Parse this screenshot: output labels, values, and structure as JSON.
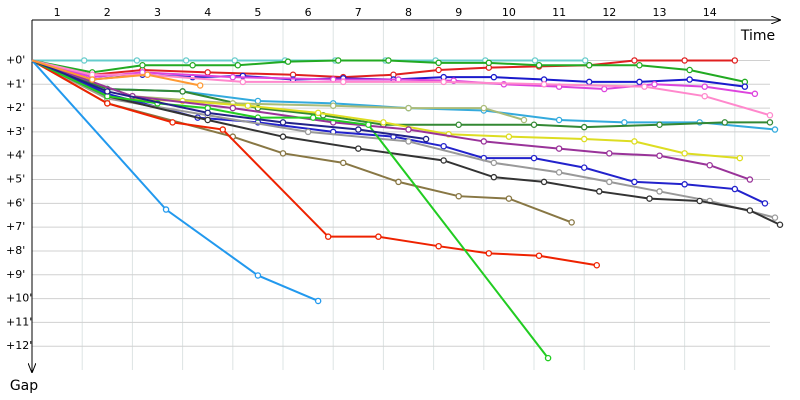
{
  "chart_data": {
    "type": "line",
    "x_label": "Time",
    "y_label": "Gap",
    "xlim": [
      0,
      14.9
    ],
    "ylim": [
      -1.7,
      13
    ],
    "grid": true,
    "xticks": [
      1,
      2,
      3,
      4,
      5,
      6,
      7,
      8,
      9,
      10,
      11,
      12,
      13,
      14
    ],
    "yticks": [
      {
        "value": 0,
        "label": "+0'"
      },
      {
        "value": 1,
        "label": "+1'"
      },
      {
        "value": 2,
        "label": "+2'"
      },
      {
        "value": 3,
        "label": "+3'"
      },
      {
        "value": 4,
        "label": "+4'"
      },
      {
        "value": 5,
        "label": "+5'"
      },
      {
        "value": 6,
        "label": "+6'"
      },
      {
        "value": 7,
        "label": "+7'"
      },
      {
        "value": 8,
        "label": "+8'"
      },
      {
        "value": 9,
        "label": "+9'"
      },
      {
        "value": 10,
        "label": "+10'"
      },
      {
        "value": 11,
        "label": "+11'"
      },
      {
        "value": 12,
        "label": "+12'"
      }
    ],
    "series": [
      {
        "color": "#66cccc",
        "x": [
          0,
          1.04,
          2.09,
          3.07,
          4.04,
          5.04,
          6.04,
          7.04,
          8.04,
          9.03,
          10.02,
          11.02
        ],
        "values": [
          0,
          0,
          0,
          0,
          0,
          0,
          0,
          0,
          0,
          0,
          0,
          0
        ]
      },
      {
        "color": "#e02020",
        "x": [
          0,
          1.2,
          2.2,
          3.5,
          5.2,
          6.2,
          7.2,
          8.1,
          9.1,
          10.1,
          11.1,
          12,
          13,
          14
        ],
        "values": [
          0,
          0.6,
          0.4,
          0.5,
          0.6,
          0.7,
          0.6,
          0.4,
          0.3,
          0.25,
          0.2,
          0,
          0,
          0
        ]
      },
      {
        "color": "#22aa22",
        "x": [
          0,
          1.2,
          2.2,
          3.2,
          4.1,
          5.1,
          6.1,
          7.1,
          8.1,
          9.1,
          10.1,
          11.1,
          12.1,
          13.1,
          14.2
        ],
        "values": [
          0,
          0.5,
          0.2,
          0.2,
          0.2,
          0.05,
          0,
          0,
          0.1,
          0.1,
          0.2,
          0.2,
          0.2,
          0.4,
          0.9
        ]
      },
      {
        "color": "#1a1acc",
        "x": [
          0,
          1.2,
          2.2,
          3.2,
          4.2,
          5.2,
          6.2,
          7.2,
          8.2,
          9.2,
          10.2,
          11.1,
          12.1,
          13.1,
          14.2
        ],
        "values": [
          0,
          0.8,
          0.6,
          0.7,
          0.65,
          0.8,
          0.75,
          0.8,
          0.7,
          0.7,
          0.8,
          0.9,
          0.9,
          0.8,
          1.1
        ]
      },
      {
        "color": "#dd44dd",
        "x": [
          0,
          1.2,
          2.2,
          4,
          6,
          7.3,
          8.4,
          9.4,
          10.5,
          11.4,
          12.4,
          13.4,
          14.4
        ],
        "values": [
          0,
          0.7,
          0.5,
          0.7,
          0.8,
          0.8,
          0.85,
          1,
          1.1,
          1.2,
          1,
          1.1,
          1.4
        ]
      },
      {
        "color": "#ff88cc",
        "x": [
          0,
          1.2,
          2.3,
          4.2,
          6.2,
          8.2,
          10.2,
          12.2,
          13.4,
          14.7
        ],
        "values": [
          0,
          0.6,
          0.6,
          0.9,
          0.9,
          0.9,
          1,
          1.1,
          1.5,
          2.3
        ]
      },
      {
        "color": "#33aadd",
        "x": [
          0,
          1.5,
          3,
          4.5,
          6,
          7.5,
          9,
          10.5,
          11.8,
          13.3,
          14.8
        ],
        "values": [
          0,
          1.2,
          1.3,
          1.7,
          1.8,
          2,
          2.1,
          2.5,
          2.6,
          2.6,
          2.9
        ]
      },
      {
        "color": "#338833",
        "x": [
          0,
          1.5,
          3,
          4.5,
          5.8,
          7,
          8.5,
          10,
          11,
          12.5,
          13.8,
          14.7
        ],
        "values": [
          0,
          1.2,
          1.3,
          2,
          2.3,
          2.7,
          2.7,
          2.7,
          2.8,
          2.7,
          2.6,
          2.6
        ]
      },
      {
        "color": "#aabb77",
        "x": [
          0,
          2,
          4,
          6,
          7.5,
          9,
          9.8
        ],
        "values": [
          0,
          1.5,
          1.8,
          1.9,
          2,
          2,
          2.5
        ]
      },
      {
        "color": "#dddd22",
        "x": [
          0,
          1.5,
          3,
          4.3,
          5.7,
          7,
          8.3,
          9.5,
          11,
          12,
          13,
          14.1
        ],
        "values": [
          0,
          1.6,
          1.7,
          1.9,
          2.2,
          2.6,
          3.1,
          3.2,
          3.3,
          3.4,
          3.9,
          4.1
        ]
      },
      {
        "color": "#993399",
        "x": [
          0,
          2,
          4,
          6,
          7.5,
          9,
          10.5,
          11.5,
          12.5,
          13.5,
          14.3
        ],
        "values": [
          0,
          1.5,
          2,
          2.6,
          2.9,
          3.4,
          3.7,
          3.9,
          4,
          4.4,
          5
        ]
      },
      {
        "color": "#2222cc",
        "x": [
          0,
          1.5,
          3.3,
          4.5,
          6,
          7.2,
          8.2,
          9,
          10,
          11,
          12,
          13,
          14,
          14.6
        ],
        "values": [
          0,
          1.4,
          2.4,
          2.6,
          3,
          3.2,
          3.6,
          4.1,
          4.1,
          4.5,
          5.1,
          5.2,
          5.4,
          6
        ]
      },
      {
        "color": "#999999",
        "x": [
          0,
          1.5,
          3.5,
          5.5,
          7.5,
          9.2,
          10.5,
          11.5,
          12.5,
          13.5,
          14.8
        ],
        "values": [
          0,
          1.6,
          2.3,
          3,
          3.4,
          4.3,
          4.7,
          5.1,
          5.5,
          5.9,
          6.6
        ]
      },
      {
        "color": "#333333",
        "x": [
          0,
          1.5,
          3.5,
          5,
          6.5,
          8.2,
          9.2,
          10.2,
          11.3,
          12.3,
          13.3,
          14.3,
          14.9
        ],
        "values": [
          0,
          1.5,
          2.5,
          3.2,
          3.7,
          4.2,
          4.9,
          5.1,
          5.5,
          5.8,
          5.9,
          6.3,
          6.9
        ]
      },
      {
        "color": "#887744",
        "x": [
          0,
          1.5,
          4,
          5,
          6.2,
          7.3,
          8.5,
          9.5,
          10.75
        ],
        "values": [
          0,
          1.8,
          3.2,
          3.9,
          4.3,
          5.1,
          5.7,
          5.8,
          6.8
        ]
      },
      {
        "color": "#ee2200",
        "x": [
          0,
          1.5,
          2.8,
          3.8,
          5.9,
          6.9,
          8.1,
          9.1,
          10.1,
          11.25
        ],
        "values": [
          0,
          1.8,
          2.6,
          2.9,
          7.4,
          7.4,
          7.8,
          8.1,
          8.2,
          8.6
        ]
      },
      {
        "color": "#22cc22",
        "x": [
          0,
          1.5,
          2.5,
          3.5,
          4.5,
          5.6,
          6.7,
          10.28
        ],
        "values": [
          0,
          1.5,
          1.8,
          2,
          2.4,
          2.4,
          2.7,
          12.5
        ]
      },
      {
        "color": "#2299ee",
        "x": [
          0,
          2.67,
          4.5,
          5.7
        ],
        "values": [
          0,
          6.26,
          9.03,
          10.1
        ]
      },
      {
        "color": "#222288",
        "x": [
          0,
          1.5,
          3.5,
          5,
          6.5,
          7.85
        ],
        "values": [
          0,
          1.3,
          2.2,
          2.6,
          2.9,
          3.3
        ]
      },
      {
        "color": "#ff9933",
        "x": [
          0,
          1.2,
          2.3,
          3.35
        ],
        "values": [
          0,
          0.8,
          0.6,
          1.05
        ]
      }
    ]
  }
}
